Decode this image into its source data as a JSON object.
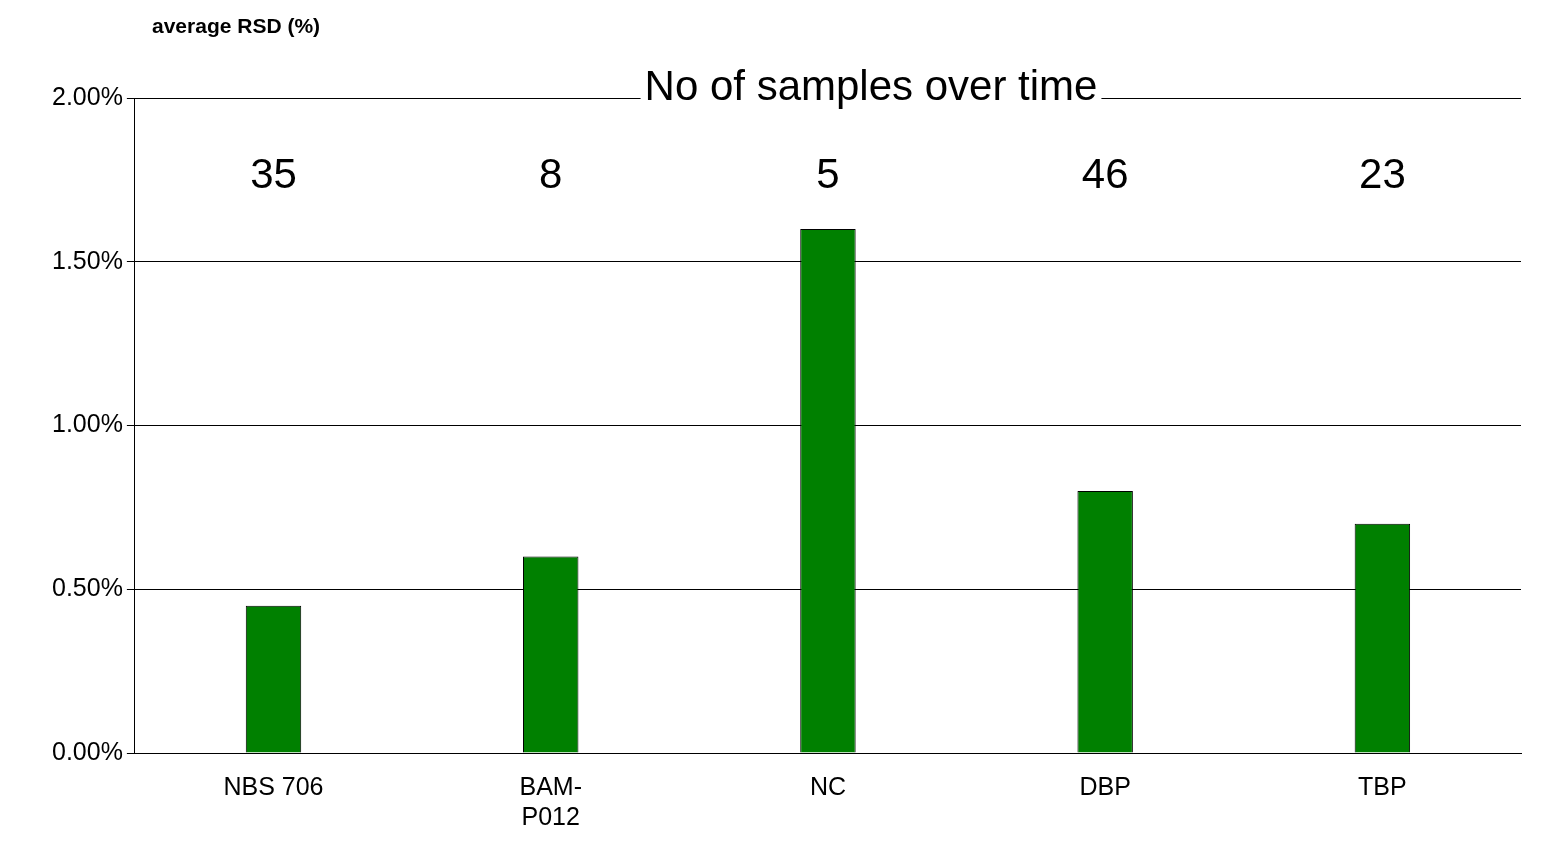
{
  "chart_data": {
    "type": "bar",
    "title": "No of samples over time",
    "ylabel": "average RSD (%)",
    "categories": [
      "NBS 706",
      "BAM-P012",
      "NC",
      "DBP",
      "TBP"
    ],
    "values": [
      0.45,
      0.6,
      1.6,
      0.8,
      0.7
    ],
    "color": "#008000",
    "ylim": [
      0,
      2
    ],
    "yticks": [
      {
        "value": 0,
        "label": "0.00%"
      },
      {
        "value": 0.5,
        "label": "0.50%"
      },
      {
        "value": 1,
        "label": "1.00%"
      },
      {
        "value": 1.5,
        "label": "1.50%"
      },
      {
        "value": 2,
        "label": "2.00%"
      }
    ],
    "grid": "y",
    "legend": false,
    "annotations": [
      "35",
      "8",
      "5",
      "46",
      "23"
    ]
  }
}
